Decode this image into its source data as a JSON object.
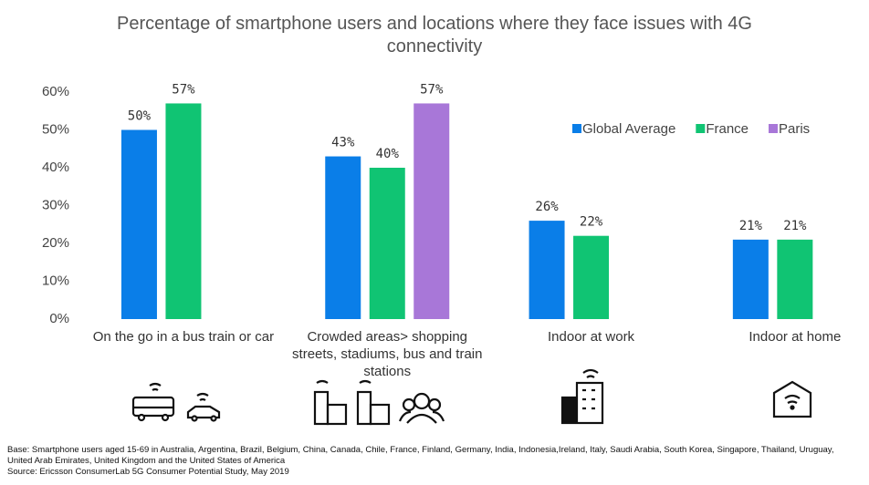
{
  "chart_data": {
    "type": "bar",
    "title": "Percentage of smartphone users and locations where they face issues with 4G connectivity",
    "categories": [
      "On the go in a bus train or car",
      "Crowded areas> shopping streets, stadiums, bus and train stations",
      "Indoor at work",
      "Indoor at home"
    ],
    "series": [
      {
        "name": "Global Average",
        "color": "#0a7ee8",
        "values": [
          50,
          43,
          26,
          21
        ],
        "value_labels": [
          "50%",
          "43%",
          "26%",
          "21%"
        ]
      },
      {
        "name": "France",
        "color": "#10c473",
        "values": [
          57,
          40,
          22,
          21
        ],
        "value_labels": [
          "57%",
          "40%",
          "22%",
          "21%"
        ]
      },
      {
        "name": "Paris",
        "color": "#a877d8",
        "values": [
          null,
          57,
          null,
          null
        ],
        "value_labels": [
          null,
          "57%",
          null,
          null
        ]
      }
    ],
    "ylim": [
      0,
      60
    ],
    "yticks": [
      {
        "value": 0,
        "label": "0%"
      },
      {
        "value": 10,
        "label": "10%"
      },
      {
        "value": 20,
        "label": "20%"
      },
      {
        "value": 30,
        "label": "30%"
      },
      {
        "value": 40,
        "label": "40%"
      },
      {
        "value": 50,
        "label": "50%"
      },
      {
        "value": 60,
        "label": "60%"
      }
    ],
    "legend": "right",
    "footnote": "Base: Smartphone users aged 15-69 in Australia, Argentina, Brazil, Belgium, China, Canada, Chile, France, Finland, Germany, India, Indonesia,Ireland, Italy, Saudi Arabia, South Korea, Singapore, Thailand, Uruguay, United Arab Emirates, United Kingdom and the United States of America",
    "source": "Source: Ericsson ConsumerLab 5G Consumer Potential Study, May 2019"
  }
}
